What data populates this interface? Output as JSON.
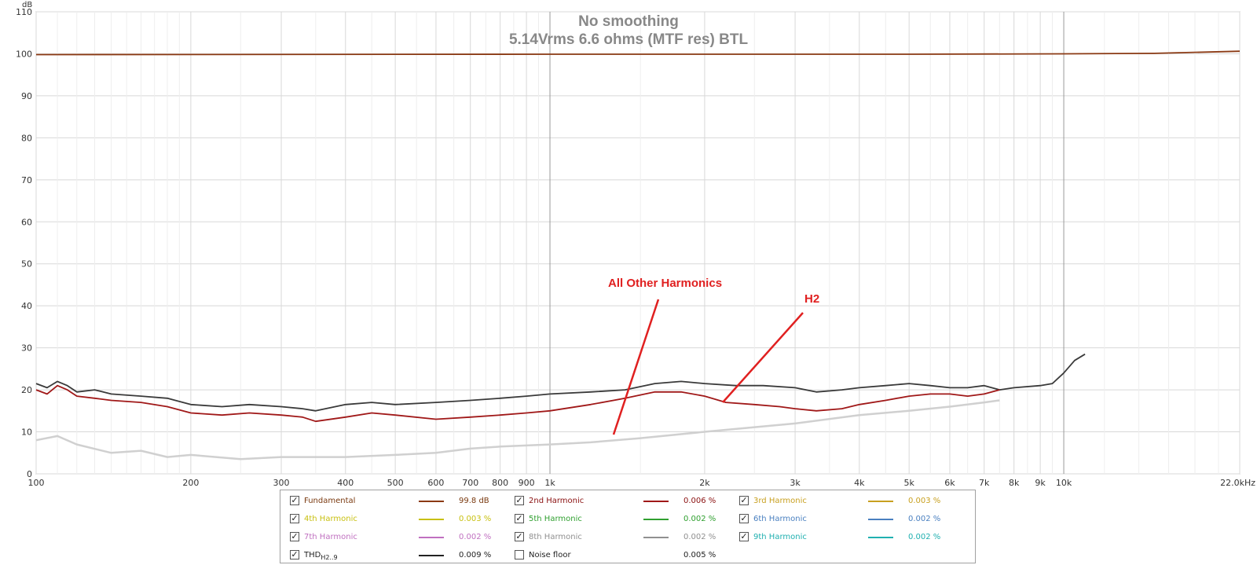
{
  "chart_data": {
    "type": "line",
    "title": "No smoothing",
    "subtitle": "5.14Vrms 6.6 ohms (MTF res) BTL",
    "y_unit": "dB",
    "x_unit": "kHz",
    "xlim": [
      100,
      22000
    ],
    "ylim": [
      0,
      110
    ],
    "x_scale": "log",
    "grid": true,
    "y_ticks": [
      "0",
      "10",
      "20",
      "30",
      "40",
      "50",
      "60",
      "70",
      "80",
      "90",
      "100",
      "110"
    ],
    "y_tick_values": [
      0,
      10,
      20,
      30,
      40,
      50,
      60,
      70,
      80,
      90,
      100,
      110
    ],
    "x_ticks": [
      {
        "v": 100,
        "label": "100"
      },
      {
        "v": 200,
        "label": "200"
      },
      {
        "v": 300,
        "label": "300"
      },
      {
        "v": 400,
        "label": "400"
      },
      {
        "v": 500,
        "label": "500"
      },
      {
        "v": 600,
        "label": "600"
      },
      {
        "v": 700,
        "label": "700"
      },
      {
        "v": 800,
        "label": "800"
      },
      {
        "v": 900,
        "label": "900"
      },
      {
        "v": 1000,
        "label": "1k"
      },
      {
        "v": 2000,
        "label": "2k"
      },
      {
        "v": 3000,
        "label": "3k"
      },
      {
        "v": 4000,
        "label": "4k"
      },
      {
        "v": 5000,
        "label": "5k"
      },
      {
        "v": 6000,
        "label": "6k"
      },
      {
        "v": 7000,
        "label": "7k"
      },
      {
        "v": 8000,
        "label": "8k"
      },
      {
        "v": 9000,
        "label": "9k"
      },
      {
        "v": 10000,
        "label": "10k"
      },
      {
        "v": 22000,
        "label": "22.0kHz"
      }
    ],
    "series": [
      {
        "name": "Fundamental",
        "color": "#8b3a14",
        "x": [
          100,
          1000,
          5000,
          10000,
          15000,
          22000
        ],
        "y": [
          99.8,
          99.9,
          99.9,
          100.0,
          100.1,
          100.6
        ]
      },
      {
        "name": "THD",
        "color": "#3a3a3a",
        "x": [
          100,
          105,
          110,
          115,
          120,
          130,
          140,
          160,
          180,
          200,
          230,
          260,
          300,
          330,
          350,
          400,
          450,
          500,
          600,
          700,
          800,
          900,
          1000,
          1200,
          1400,
          1600,
          1800,
          2000,
          2300,
          2600,
          3000,
          3300,
          3700,
          4000,
          4500,
          5000,
          5500,
          6000,
          6500,
          7000,
          7500,
          8000,
          9000,
          9500,
          10000,
          10500,
          11000
        ],
        "y": [
          21.5,
          20.5,
          22.0,
          21.0,
          19.5,
          20.0,
          19.0,
          18.5,
          18.0,
          16.5,
          16.0,
          16.5,
          16.0,
          15.5,
          15.0,
          16.5,
          17.0,
          16.5,
          17.0,
          17.5,
          18.0,
          18.5,
          19.0,
          19.5,
          20.0,
          21.5,
          22.0,
          21.5,
          21.0,
          21.0,
          20.5,
          19.5,
          20.0,
          20.5,
          21.0,
          21.5,
          21.0,
          20.5,
          20.5,
          21.0,
          20.0,
          20.5,
          21.0,
          21.5,
          24.0,
          27.0,
          28.5
        ]
      },
      {
        "name": "2nd Harmonic",
        "color": "#a01818",
        "x": [
          100,
          105,
          110,
          115,
          120,
          130,
          140,
          160,
          180,
          200,
          230,
          260,
          300,
          330,
          350,
          400,
          450,
          500,
          600,
          700,
          800,
          900,
          1000,
          1200,
          1400,
          1600,
          1800,
          2000,
          2200,
          2500,
          2800,
          3000,
          3300,
          3700,
          4000,
          4500,
          5000,
          5500,
          6000,
          6500,
          7000,
          7500
        ],
        "y": [
          20.0,
          19.0,
          21.0,
          20.0,
          18.5,
          18.0,
          17.5,
          17.0,
          16.0,
          14.5,
          14.0,
          14.5,
          14.0,
          13.5,
          12.5,
          13.5,
          14.5,
          14.0,
          13.0,
          13.5,
          14.0,
          14.5,
          15.0,
          16.5,
          18.0,
          19.5,
          19.5,
          18.5,
          17.0,
          16.5,
          16.0,
          15.5,
          15.0,
          15.5,
          16.5,
          17.5,
          18.5,
          19.0,
          19.0,
          18.5,
          19.0,
          20.0
        ]
      },
      {
        "name": "All Other Harmonics",
        "color": "#d0d0d0",
        "x": [
          100,
          110,
          120,
          140,
          160,
          180,
          200,
          250,
          300,
          400,
          500,
          600,
          700,
          800,
          1000,
          1200,
          1500,
          2000,
          3000,
          4000,
          5000,
          6000,
          7000,
          7500
        ],
        "y": [
          8.0,
          9.0,
          7.0,
          5.0,
          5.5,
          4.0,
          4.5,
          3.5,
          4.0,
          4.0,
          4.5,
          5.0,
          6.0,
          6.5,
          7.0,
          7.5,
          8.5,
          10.0,
          12.0,
          14.0,
          15.0,
          16.0,
          17.0,
          17.5
        ]
      }
    ],
    "annotations": [
      {
        "text": "All Other Harmonics",
        "color": "#e02020"
      },
      {
        "text": "H2",
        "color": "#e02020"
      }
    ]
  },
  "legend": [
    {
      "label": "Fundamental",
      "color": "#8b3a14",
      "value": "99.8 dB",
      "checked": true
    },
    {
      "label": "2nd Harmonic",
      "color": "#a01818",
      "value": "0.006 %",
      "checked": true
    },
    {
      "label": "3rd Harmonic",
      "color": "#c8a020",
      "value": "0.003 %",
      "checked": true
    },
    {
      "label": "4th Harmonic",
      "color": "#c8c010",
      "value": "0.003 %",
      "checked": true
    },
    {
      "label": "5th Harmonic",
      "color": "#30a030",
      "value": "0.002 %",
      "checked": true
    },
    {
      "label": "6th Harmonic",
      "color": "#4a80c0",
      "value": "0.002 %",
      "checked": true
    },
    {
      "label": "7th Harmonic",
      "color": "#c070c0",
      "value": "0.002 %",
      "checked": true
    },
    {
      "label": "8th Harmonic",
      "color": "#909090",
      "value": "0.002 %",
      "checked": true
    },
    {
      "label": "9th Harmonic",
      "color": "#20b0b0",
      "value": "0.002 %",
      "checked": true
    },
    {
      "label": "THD",
      "label_sub": "H2..9",
      "color": "#222222",
      "value": "0.009 %",
      "checked": true
    },
    {
      "label": "Noise floor",
      "color": "",
      "value": "0.005 %",
      "checked": false
    }
  ]
}
